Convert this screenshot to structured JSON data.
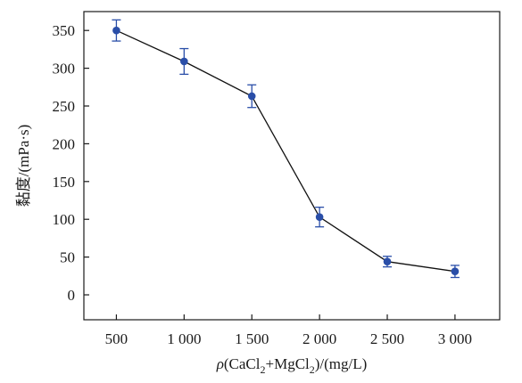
{
  "chart_data": {
    "type": "line",
    "xlabel_parts": {
      "symbol": "ρ",
      "open": "(CaCl",
      "sub1": "2",
      "mid": "+MgCl",
      "sub2": "2",
      "close": ")/(mg/L)"
    },
    "ylabel": "黏度/(mPa·s)",
    "x": [
      500,
      1000,
      1500,
      2000,
      2500,
      3000
    ],
    "x_tick_labels": [
      "500",
      "1 000",
      "1 500",
      "2 000",
      "2 500",
      "3 000"
    ],
    "y_ticks": [
      0,
      50,
      100,
      150,
      200,
      250,
      300,
      350
    ],
    "y_tick_labels": [
      "0",
      "50",
      "100",
      "150",
      "200",
      "250",
      "300",
      "350"
    ],
    "xlim": [
      260,
      3330
    ],
    "ylim": [
      -33,
      375
    ],
    "series": [
      {
        "values": [
          350,
          309,
          263,
          103,
          44,
          31
        ],
        "error": [
          14,
          17,
          15,
          13,
          7,
          8
        ],
        "color": "#2a4ea8",
        "line_color": "#111111"
      }
    ],
    "grid": false,
    "legend": "none"
  }
}
